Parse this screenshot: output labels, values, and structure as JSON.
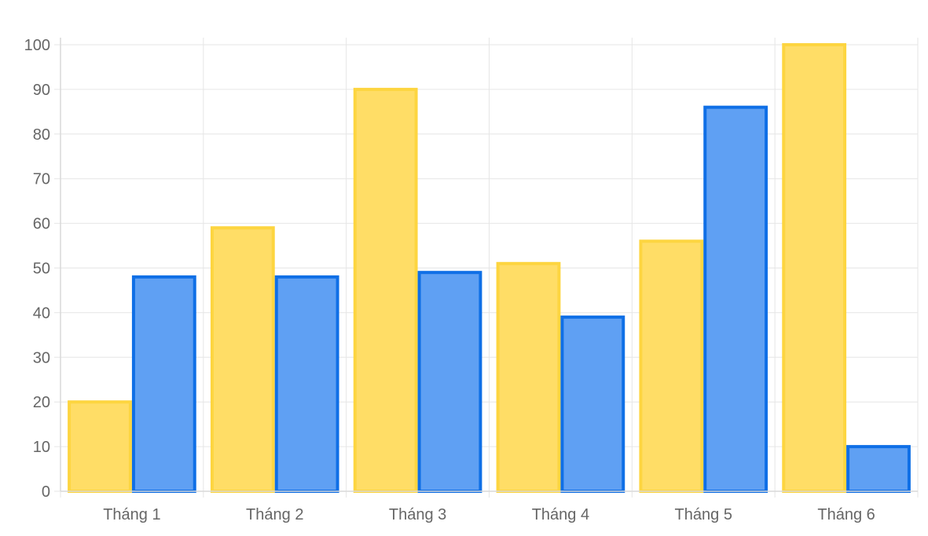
{
  "chart_data": {
    "type": "bar",
    "categories": [
      "Tháng 1",
      "Tháng 2",
      "Tháng 3",
      "Tháng 4",
      "Tháng 5",
      "Tháng 6"
    ],
    "series": [
      {
        "values": [
          20,
          59,
          90,
          51,
          56,
          100
        ],
        "fill": "#ffdd66",
        "stroke": "#fdd540"
      },
      {
        "values": [
          48,
          48,
          49,
          39,
          86,
          10
        ],
        "fill": "#5fa0f3",
        "stroke": "#0f6fe6"
      }
    ],
    "ylim": [
      0,
      100
    ],
    "yticks": [
      0,
      10,
      20,
      30,
      40,
      50,
      60,
      70,
      80,
      90,
      100
    ],
    "grid": true,
    "legend": "none",
    "title": "",
    "xlabel": "",
    "ylabel": ""
  }
}
